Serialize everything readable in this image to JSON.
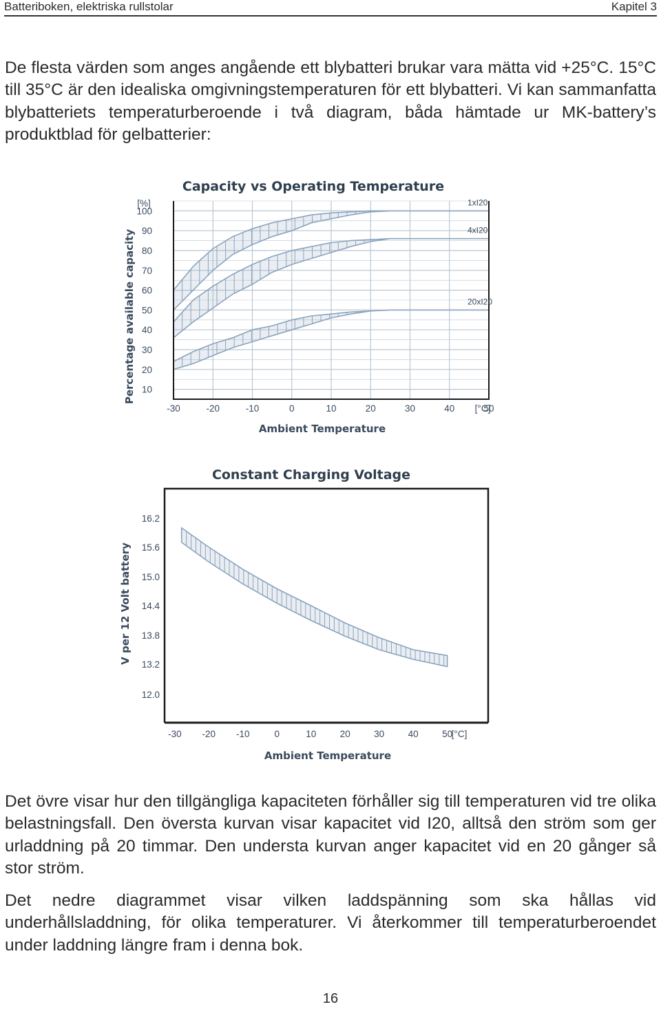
{
  "header": {
    "left": "Batteriboken, elektriska rullstolar",
    "right": "Kapitel 3"
  },
  "intro_paragraph": "De flesta värden som anges angående ett blybatteri brukar vara mätta vid +25°C. 15°C till 35°C är den idealiska omgivningstemperaturen för ett blybatteri. Vi kan sammanfatta blybatteriets temperaturberoende i två diagram, båda hämtade ur MK-battery’s produktblad för gelbatterier:",
  "chart_data": [
    {
      "type": "area",
      "title": "Capacity vs Operating Temperature",
      "xlabel": "Ambient Temperature",
      "ylabel": "Percentage available capacity",
      "x_unit": "[°C]",
      "y_unit": "[%]",
      "xticks": [
        "-30",
        "-20",
        "-10",
        "0",
        "10",
        "20",
        "30",
        "40",
        "50"
      ],
      "yticks": [
        "10",
        "20",
        "30",
        "40",
        "50",
        "60",
        "70",
        "80",
        "90",
        "100"
      ],
      "xlim": [
        -30,
        50
      ],
      "ylim": [
        5,
        105
      ],
      "grid": true,
      "series": [
        {
          "name": "1xI20",
          "x": [
            -30,
            -25,
            -20,
            -15,
            -10,
            -5,
            0,
            5,
            10,
            15,
            20,
            25,
            30,
            35,
            40,
            45,
            50
          ],
          "upper": [
            60,
            72,
            81,
            87,
            91,
            94,
            96,
            98,
            99,
            99.5,
            100,
            100,
            100,
            100,
            100,
            100,
            100
          ],
          "lower": [
            50,
            60,
            70,
            78,
            83,
            87,
            90,
            94,
            96,
            98,
            99.5,
            100,
            100,
            100,
            100,
            100,
            100
          ]
        },
        {
          "name": "4xI20",
          "x": [
            -30,
            -25,
            -20,
            -15,
            -10,
            -5,
            0,
            5,
            10,
            15,
            20,
            25,
            30,
            35,
            40,
            45,
            50
          ],
          "upper": [
            44,
            55,
            62,
            68,
            73,
            77,
            80,
            82,
            84,
            85,
            85.5,
            86,
            86,
            86,
            86,
            86,
            86
          ],
          "lower": [
            36,
            44,
            51,
            58,
            63,
            69,
            73,
            76,
            79,
            82,
            84.5,
            86,
            86,
            86,
            86,
            86,
            86
          ]
        },
        {
          "name": "20xI20",
          "x": [
            -30,
            -25,
            -20,
            -15,
            -10,
            -5,
            0,
            5,
            10,
            15,
            20,
            25,
            30,
            35,
            40,
            45,
            50
          ],
          "upper": [
            24,
            29,
            33,
            36,
            40,
            42,
            45,
            47,
            48,
            49,
            49.5,
            50,
            50,
            50,
            50,
            50,
            50
          ],
          "lower": [
            20,
            23,
            27,
            31,
            34,
            37,
            40,
            43,
            46,
            48,
            49.5,
            50,
            50,
            50,
            50,
            50,
            50
          ]
        }
      ]
    },
    {
      "type": "area",
      "title": "Constant Charging Voltage",
      "xlabel": "Ambient Temperature",
      "ylabel": "V per 12 Volt battery",
      "x_unit": "[°C]",
      "xticks": [
        "-30",
        "-20",
        "-10",
        "0",
        "10",
        "20",
        "30",
        "40",
        "50"
      ],
      "yticks": [
        "12.0",
        "13.2",
        "13.8",
        "14.4",
        "15.0",
        "15.6",
        "16.2"
      ],
      "xlim": [
        -33,
        62
      ],
      "grid": false,
      "series": [
        {
          "x": [
            -28,
            -20,
            -10,
            0,
            10,
            20,
            30,
            40,
            50
          ],
          "upper": [
            16.0,
            15.6,
            15.15,
            14.75,
            14.4,
            14.05,
            13.75,
            13.5,
            13.38
          ],
          "lower": [
            15.7,
            15.3,
            14.85,
            14.45,
            14.1,
            13.78,
            13.5,
            13.3,
            13.15
          ]
        }
      ]
    }
  ],
  "paragraph_2": "Det övre visar hur den tillgängliga kapaciteten förhåller sig till temperaturen vid tre olika belastningsfall. Den översta kurvan visar kapacitet vid I20, alltså den ström som ger urladdning på 20 timmar. Den understa kurvan anger kapacitet vid en 20 gånger så stor ström.",
  "paragraph_3": "Det nedre diagrammet visar vilken laddspänning som ska hållas vid underhållsladdning, för olika temperaturer. Vi återkommer till temperaturberoendet under laddning längre fram i denna bok.",
  "page_number": "16",
  "colors": {
    "band": "#8aa3bd",
    "grid": "#b9c6d3",
    "frame": "#1a1a1a",
    "label": "#3a4a5c"
  }
}
